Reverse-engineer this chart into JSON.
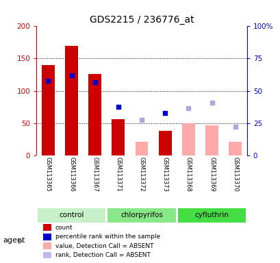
{
  "title": "GDS2215 / 236776_at",
  "samples": [
    "GSM113365",
    "GSM113366",
    "GSM113367",
    "GSM113371",
    "GSM113372",
    "GSM113373",
    "GSM113368",
    "GSM113369",
    "GSM113370"
  ],
  "groups": [
    {
      "name": "control",
      "color": "#c8f0c8",
      "indices": [
        0,
        1,
        2
      ]
    },
    {
      "name": "chlorpyrifos",
      "color": "#88e888",
      "indices": [
        3,
        4,
        5
      ]
    },
    {
      "name": "cyfluthrin",
      "color": "#44dd44",
      "indices": [
        6,
        7,
        8
      ]
    }
  ],
  "red_bars": [
    140,
    170,
    126,
    56,
    null,
    38,
    null,
    null,
    null
  ],
  "blue_squares_left": [
    115,
    124,
    113,
    75,
    null,
    66,
    null,
    null,
    null
  ],
  "pink_bars": [
    null,
    null,
    null,
    null,
    21,
    null,
    50,
    47,
    21
  ],
  "lavender_squares_left": [
    null,
    null,
    null,
    null,
    55,
    null,
    73,
    82,
    44
  ],
  "left_ylim": [
    0,
    200
  ],
  "right_ylim": [
    0,
    100
  ],
  "left_yticks": [
    0,
    50,
    100,
    150,
    200
  ],
  "right_yticks": [
    0,
    25,
    50,
    75,
    100
  ],
  "right_yticklabels": [
    "0",
    "25",
    "50",
    "75",
    "100%"
  ],
  "left_ycolor": "#cc0000",
  "right_ycolor": "#0000cc",
  "legend_items": [
    {
      "color": "#cc0000",
      "label": "count"
    },
    {
      "color": "#0000cc",
      "label": "percentile rank within the sample"
    },
    {
      "color": "#ffaaaa",
      "label": "value, Detection Call = ABSENT"
    },
    {
      "color": "#bbbbee",
      "label": "rank, Detection Call = ABSENT"
    }
  ],
  "agent_label": "agent",
  "bar_width": 0.55,
  "square_size": 25,
  "background_color": "#ffffff",
  "plot_bg": "#ffffff"
}
